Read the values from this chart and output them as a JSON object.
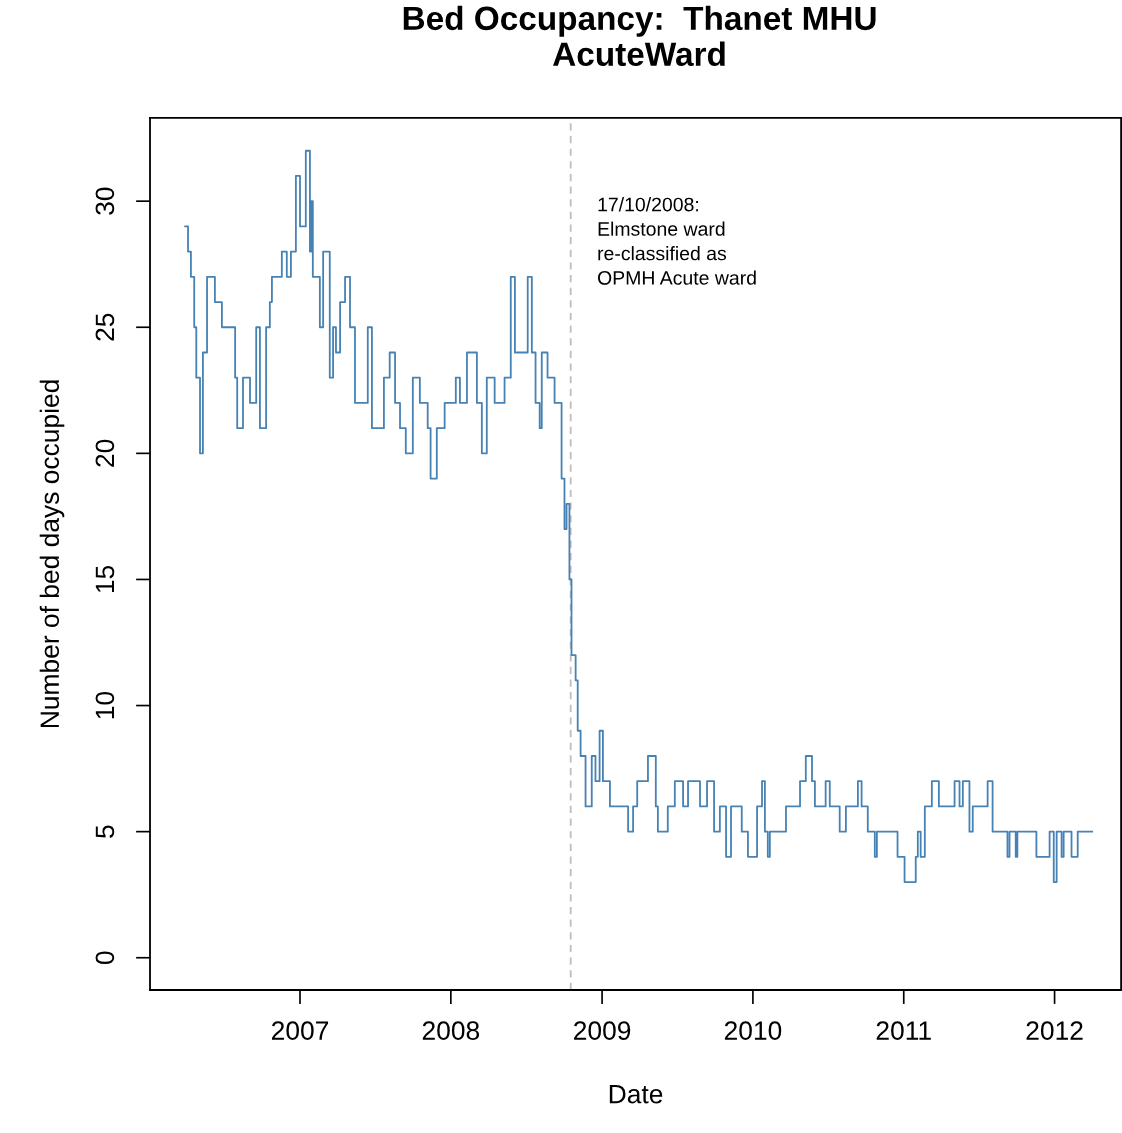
{
  "chart_data": {
    "type": "step",
    "title": "Bed Occupancy:  Thanet MHU\nAcuteWard",
    "xlabel": "Date",
    "ylabel": "Number of bed days occupied",
    "x": [
      "2006-03-29",
      "2006-04-05",
      "2006-04-12",
      "2006-04-20",
      "2006-04-25",
      "2006-05-04",
      "2006-05-11",
      "2006-05-21",
      "2006-06-09",
      "2006-06-26",
      "2006-07-28",
      "2006-08-02",
      "2006-08-16",
      "2006-09-02",
      "2006-09-17",
      "2006-09-26",
      "2006-10-11",
      "2006-10-20",
      "2006-10-25",
      "2006-11-18",
      "2006-11-30",
      "2006-12-10",
      "2006-12-22",
      "2007-01-01",
      "2007-01-15",
      "2007-01-25",
      "2007-01-28",
      "2007-02-01",
      "2007-02-18",
      "2007-02-26",
      "2007-03-14",
      "2007-03-22",
      "2007-03-29",
      "2007-04-08",
      "2007-04-20",
      "2007-05-02",
      "2007-05-14",
      "2007-06-14",
      "2007-06-24",
      "2007-07-23",
      "2007-08-06",
      "2007-08-19",
      "2007-08-31",
      "2007-09-14",
      "2007-10-01",
      "2007-10-18",
      "2007-11-06",
      "2007-11-13",
      "2007-11-28",
      "2007-12-17",
      "2008-01-13",
      "2008-01-23",
      "2008-02-09",
      "2008-03-04",
      "2008-03-16",
      "2008-03-28",
      "2008-04-16",
      "2008-05-10",
      "2008-05-25",
      "2008-06-04",
      "2008-07-05",
      "2008-07-15",
      "2008-07-24",
      "2008-08-03",
      "2008-08-08",
      "2008-08-22",
      "2008-09-08",
      "2008-09-25",
      "2008-10-02",
      "2008-10-07",
      "2008-10-14",
      "2008-10-19",
      "2008-10-29",
      "2008-11-03",
      "2008-11-10",
      "2008-11-22",
      "2008-12-07",
      "2008-12-16",
      "2008-12-26",
      "2009-01-03",
      "2009-01-20",
      "2009-03-05",
      "2009-03-17",
      "2009-03-27",
      "2009-04-22",
      "2009-05-11",
      "2009-05-16",
      "2009-06-09",
      "2009-06-26",
      "2009-07-16",
      "2009-07-28",
      "2009-08-26",
      "2009-09-12",
      "2009-09-29",
      "2009-10-13",
      "2009-10-28",
      "2009-11-09",
      "2009-12-05",
      "2009-12-20",
      "2010-01-11",
      "2010-01-23",
      "2010-01-30",
      "2010-02-06",
      "2010-02-11",
      "2010-03-22",
      "2010-04-25",
      "2010-05-09",
      "2010-05-24",
      "2010-05-31",
      "2010-06-26",
      "2010-07-06",
      "2010-07-30",
      "2010-08-14",
      "2010-09-12",
      "2010-09-21",
      "2010-10-06",
      "2010-10-23",
      "2010-10-28",
      "2010-12-17",
      "2011-01-03",
      "2011-01-30",
      "2011-02-04",
      "2011-02-11",
      "2011-02-21",
      "2011-03-10",
      "2011-03-27",
      "2011-05-04",
      "2011-05-16",
      "2011-05-24",
      "2011-06-09",
      "2011-06-17",
      "2011-07-23",
      "2011-08-04",
      "2011-09-09",
      "2011-09-14",
      "2011-09-29",
      "2011-10-03",
      "2011-11-18",
      "2011-12-20",
      "2011-12-30",
      "2012-01-06",
      "2012-01-18",
      "2012-01-23",
      "2012-02-11",
      "2012-02-26",
      "2012-04-01"
    ],
    "series": [
      {
        "color": "#4682b4",
        "values": [
          29,
          28,
          27,
          25,
          23,
          20,
          24,
          27,
          26,
          25,
          23,
          21,
          23,
          22,
          25,
          21,
          25,
          26,
          27,
          28,
          27,
          28,
          31,
          29,
          32,
          28,
          30,
          27,
          25,
          28,
          23,
          25,
          24,
          26,
          27,
          25,
          22,
          25,
          21,
          23,
          24,
          22,
          21,
          20,
          23,
          22,
          21,
          19,
          21,
          22,
          23,
          22,
          24,
          22,
          20,
          23,
          22,
          23,
          27,
          24,
          27,
          24,
          22,
          21,
          24,
          23,
          22,
          19,
          17,
          18,
          15,
          12,
          11,
          9,
          8,
          6,
          8,
          7,
          9,
          7,
          6,
          5,
          6,
          7,
          8,
          6,
          5,
          6,
          7,
          6,
          7,
          6,
          7,
          5,
          6,
          4,
          6,
          5,
          4,
          6,
          7,
          5,
          4,
          5,
          6,
          7,
          8,
          7,
          6,
          7,
          6,
          5,
          6,
          7,
          6,
          5,
          4,
          5,
          4,
          3,
          4,
          5,
          4,
          6,
          7,
          6,
          7,
          6,
          7,
          5,
          6,
          7,
          5,
          4,
          5,
          4,
          5,
          4,
          5,
          3,
          5,
          4,
          5,
          4,
          5,
          5
        ]
      }
    ],
    "xlim": [
      "2006-01-03",
      "2012-06-10"
    ],
    "xticks": [
      {
        "value": "2007-01-01",
        "label": "2007"
      },
      {
        "value": "2008-01-01",
        "label": "2008"
      },
      {
        "value": "2009-01-01",
        "label": "2009"
      },
      {
        "value": "2010-01-01",
        "label": "2010"
      },
      {
        "value": "2011-01-01",
        "label": "2011"
      },
      {
        "value": "2012-01-01",
        "label": "2012"
      }
    ],
    "ylim": [
      -1.28,
      33.3
    ],
    "yticks": [
      0,
      5,
      10,
      15,
      20,
      25,
      30
    ],
    "ref_lines": [
      {
        "axis": "x",
        "value": "2008-10-17",
        "label": "17/10/2008:\nElmstone ward\nre-classified as\nOPMH Acute ward",
        "color": "#bebebe",
        "line_style": "dashed"
      }
    ],
    "grid": false,
    "legend": false
  }
}
